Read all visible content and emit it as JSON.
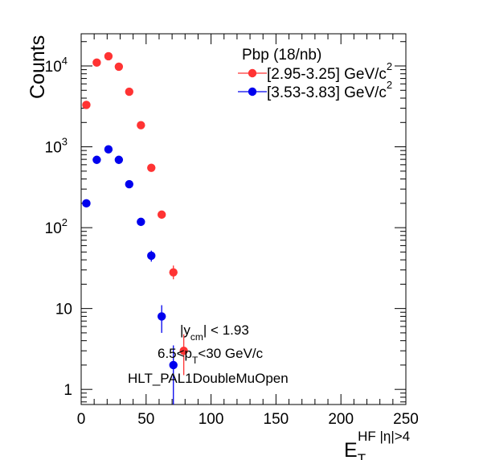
{
  "chart_data": {
    "type": "scatter",
    "xlabel": {
      "base": "E",
      "sub": "T",
      "sup": "HF |η|>4"
    },
    "ylabel": "Counts",
    "xlim": [
      0,
      250
    ],
    "ylim": [
      0.65,
      25000
    ],
    "log_y": true,
    "grid": false,
    "legend_position": "top-right",
    "x_ticks": [
      0,
      50,
      100,
      150,
      200,
      250
    ],
    "y_ticks": [
      {
        "value": 1,
        "base": "1",
        "exp": ""
      },
      {
        "value": 10,
        "base": "10",
        "exp": ""
      },
      {
        "value": 100,
        "base": "10",
        "exp": "2"
      },
      {
        "value": 1000,
        "base": "10",
        "exp": "3"
      },
      {
        "value": 10000,
        "base": "10",
        "exp": "4"
      }
    ],
    "legend_title": "Pbp (18/nb)",
    "series": [
      {
        "name": "[2.95-3.25] GeV/c",
        "name_sup": "2",
        "color": "#ff3333",
        "x": [
          4,
          12,
          21,
          29,
          37,
          46,
          54,
          62,
          71,
          79
        ],
        "y": [
          3300,
          11000,
          13200,
          9800,
          4800,
          1850,
          550,
          145,
          28,
          3
        ],
        "err_low": [
          60,
          100,
          115,
          100,
          70,
          45,
          24,
          12,
          5,
          1.5
        ],
        "err_high": [
          60,
          100,
          115,
          100,
          70,
          45,
          24,
          12,
          6,
          1.8
        ]
      },
      {
        "name": "[3.53-3.83] GeV/c",
        "name_sup": "2",
        "color": "#0000ee",
        "x": [
          4,
          12,
          21,
          29,
          37,
          46,
          54,
          62,
          71
        ],
        "y": [
          200,
          690,
          930,
          690,
          345,
          118,
          45,
          8,
          2
        ],
        "err_low": [
          14,
          26,
          30,
          26,
          19,
          11,
          7,
          3,
          1.4
        ],
        "err_high": [
          14,
          26,
          30,
          26,
          19,
          11,
          7,
          3,
          1.5
        ]
      }
    ],
    "annotations": [
      {
        "id": "ycm",
        "pre": "|y",
        "sub": "cm",
        "post": "| < 1.93"
      },
      {
        "id": "pt",
        "pre": "6.5<p",
        "sub": "T",
        "post": "<30 GeV/c"
      },
      {
        "id": "trigger",
        "pre": "HLT_PAL1DoubleMuOpen",
        "sub": "",
        "post": ""
      }
    ]
  }
}
